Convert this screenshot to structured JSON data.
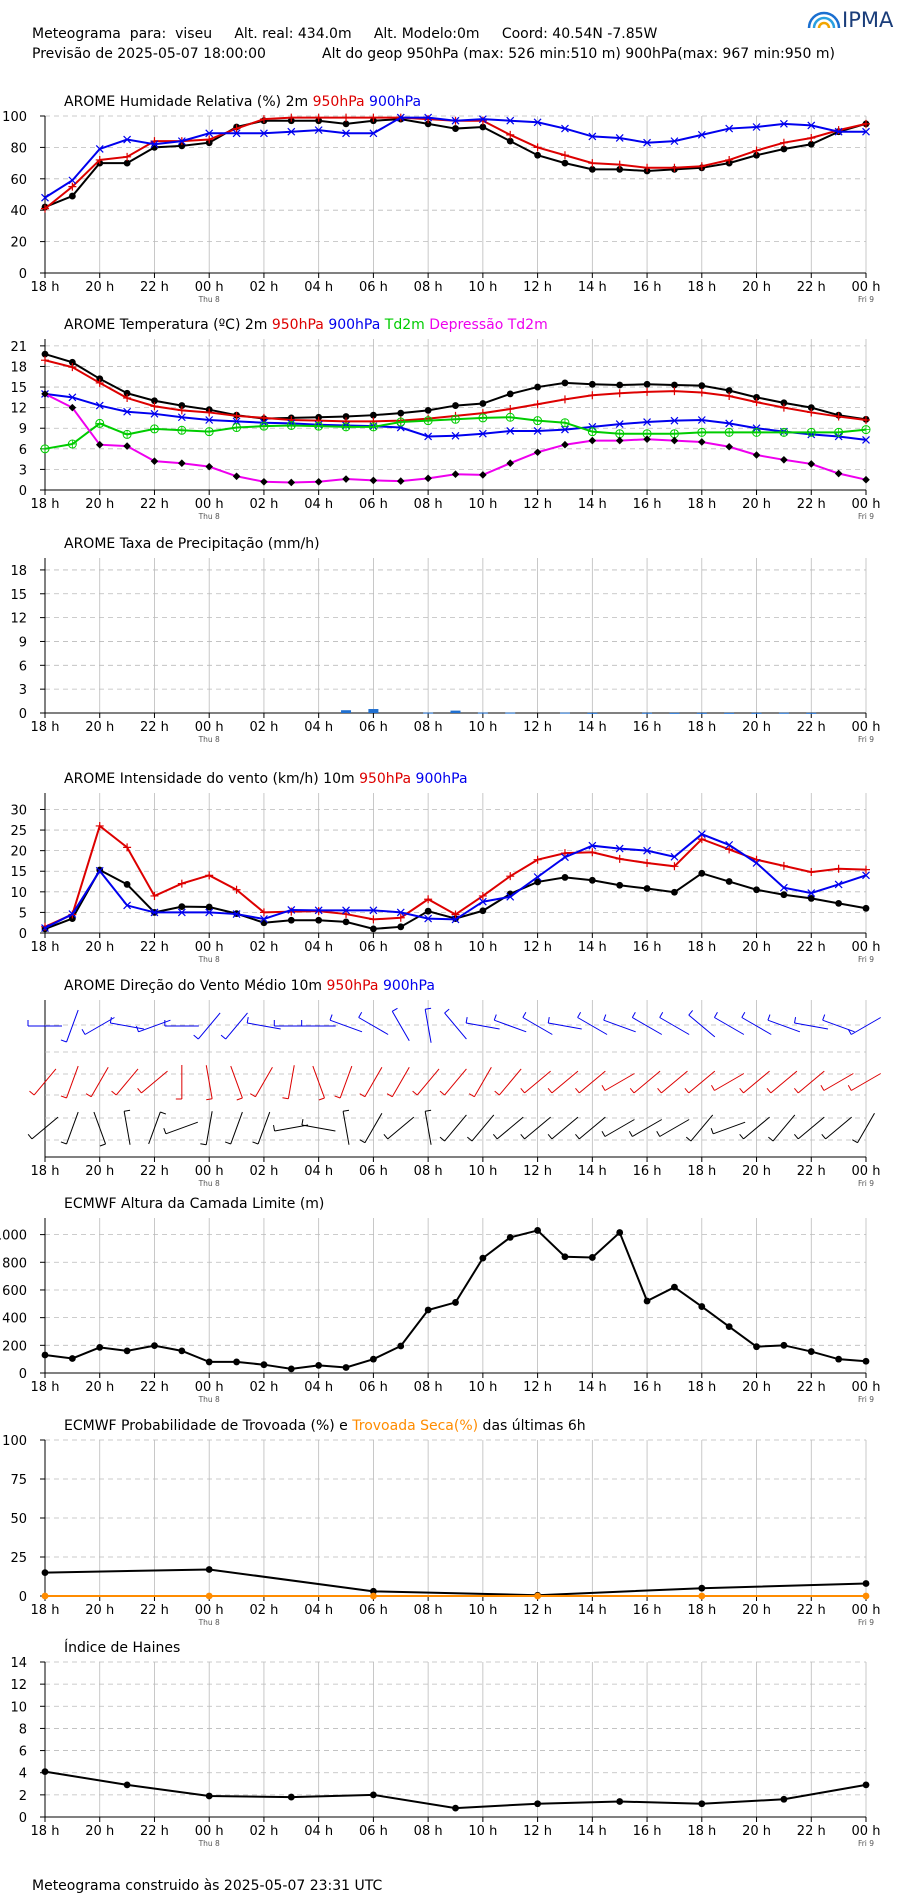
{
  "header": {
    "line1": "Meteograma  para:  viseu     Alt. real: 434.0m     Alt. Modelo:0m     Coord: 40.54N -7.85W",
    "line2_left": "Previsão de 2025-05-07 18:00:00",
    "line2_right": "Alt do geop 950hPa (max: 526 min:510 m) 900hPa(max: 967 min:950 m)",
    "logo_text": "IPMA"
  },
  "colors": {
    "black": "#000000",
    "red": "#dd0000",
    "blue": "#0000ee",
    "green": "#00cc00",
    "magenta": "#ee00ee",
    "orange": "#ff8c00",
    "precip_bar": "#1f6fd0",
    "grid": "#bbbbbb"
  },
  "time_axis": {
    "tick_labels": [
      "18 h",
      "20 h",
      "22 h",
      "00 h",
      "02 h",
      "04 h",
      "06 h",
      "08 h",
      "10 h",
      "12 h",
      "14 h",
      "16 h",
      "18 h",
      "20 h",
      "22 h",
      "00 h"
    ],
    "day_labels": [
      {
        "at_hour": 6,
        "label": "Thu 8"
      },
      {
        "at_hour": 30,
        "label": "Fri 9"
      }
    ]
  },
  "chart_data": [
    {
      "id": "humidity",
      "type": "line",
      "title_parts": [
        {
          "text": "AROME Humidade Relativa (%)  2m  ",
          "color": "#000000"
        },
        {
          "text": "950hPa",
          "color": "#dd0000"
        },
        {
          "text": "  ",
          "color": "#000000"
        },
        {
          "text": "900hPa",
          "color": "#0000ee"
        }
      ],
      "ylim": [
        0,
        100
      ],
      "yticks": [
        0,
        20,
        40,
        60,
        80,
        100
      ],
      "x": [
        0,
        1,
        2,
        3,
        4,
        5,
        6,
        7,
        8,
        9,
        10,
        11,
        12,
        13,
        14,
        15,
        16,
        17,
        18,
        19,
        20,
        21,
        22,
        23,
        24,
        25,
        26,
        27,
        28,
        29,
        30
      ],
      "series": [
        {
          "name": "2m",
          "color": "#000000",
          "marker": "dot",
          "values": [
            42,
            49,
            70,
            70,
            80,
            81,
            83,
            93,
            97,
            97,
            97,
            95,
            97,
            98,
            95,
            92,
            93,
            84,
            75,
            70,
            66,
            66,
            65,
            66,
            67,
            70,
            75,
            79,
            82,
            90,
            95
          ]
        },
        {
          "name": "950hPa",
          "color": "#dd0000",
          "marker": "plus",
          "values": [
            41,
            55,
            72,
            74,
            84,
            84,
            85,
            92,
            98,
            99,
            99,
            99,
            99,
            99,
            98,
            97,
            97,
            88,
            80,
            75,
            70,
            69,
            67,
            67,
            68,
            72,
            78,
            83,
            86,
            91,
            95
          ]
        },
        {
          "name": "900hPa",
          "color": "#0000ee",
          "marker": "x",
          "values": [
            48,
            59,
            79,
            85,
            82,
            84,
            89,
            89,
            89,
            90,
            91,
            89,
            89,
            99,
            99,
            97,
            98,
            97,
            96,
            92,
            87,
            86,
            83,
            84,
            88,
            92,
            93,
            95,
            94,
            90,
            90
          ]
        }
      ]
    },
    {
      "id": "temperature",
      "type": "line",
      "title_parts": [
        {
          "text": "AROME Temperatura (ºC)  2m  ",
          "color": "#000000"
        },
        {
          "text": "950hPa",
          "color": "#dd0000"
        },
        {
          "text": "  ",
          "color": "#000000"
        },
        {
          "text": "900hPa",
          "color": "#0000ee"
        },
        {
          "text": "  ",
          "color": "#000000"
        },
        {
          "text": "Td2m",
          "color": "#00cc00"
        },
        {
          "text": "  ",
          "color": "#000000"
        },
        {
          "text": "Depressão Td2m",
          "color": "#ee00ee"
        }
      ],
      "ylim": [
        0,
        22
      ],
      "yticks": [
        0,
        3,
        6,
        9,
        12,
        15,
        18,
        21
      ],
      "x": [
        0,
        1,
        2,
        3,
        4,
        5,
        6,
        7,
        8,
        9,
        10,
        11,
        12,
        13,
        14,
        15,
        16,
        17,
        18,
        19,
        20,
        21,
        22,
        23,
        24,
        25,
        26,
        27,
        28,
        29,
        30
      ],
      "series": [
        {
          "name": "2m",
          "color": "#000000",
          "marker": "dot",
          "values": [
            19.8,
            18.6,
            16.2,
            14.1,
            13.0,
            12.3,
            11.7,
            10.9,
            10.4,
            10.5,
            10.6,
            10.7,
            10.9,
            11.2,
            11.6,
            12.3,
            12.6,
            14.0,
            15.0,
            15.6,
            15.4,
            15.3,
            15.4,
            15.3,
            15.2,
            14.5,
            13.5,
            12.7,
            12.0,
            10.9,
            10.3
          ]
        },
        {
          "name": "950hPa",
          "color": "#dd0000",
          "marker": "plus",
          "values": [
            18.9,
            17.9,
            15.6,
            13.4,
            12.2,
            11.6,
            11.3,
            10.8,
            10.5,
            10.2,
            10.1,
            10.0,
            10.0,
            10.1,
            10.4,
            10.8,
            11.2,
            11.8,
            12.5,
            13.2,
            13.8,
            14.1,
            14.3,
            14.4,
            14.2,
            13.7,
            12.8,
            12.0,
            11.3,
            10.7,
            10.2
          ]
        },
        {
          "name": "900hPa",
          "color": "#0000ee",
          "marker": "x",
          "values": [
            14.0,
            13.5,
            12.3,
            11.4,
            11.1,
            10.6,
            10.2,
            10.0,
            9.8,
            9.7,
            9.5,
            9.4,
            9.3,
            9.1,
            7.8,
            7.9,
            8.2,
            8.6,
            8.6,
            8.8,
            9.2,
            9.6,
            9.9,
            10.1,
            10.2,
            9.7,
            9.0,
            8.5,
            8.1,
            7.8,
            7.3
          ]
        },
        {
          "name": "Td2m",
          "color": "#00cc00",
          "marker": "circle-plus",
          "values": [
            6.0,
            6.7,
            9.7,
            8.1,
            8.9,
            8.7,
            8.5,
            9.1,
            9.3,
            9.4,
            9.3,
            9.2,
            9.2,
            9.9,
            10.1,
            10.3,
            10.5,
            10.6,
            10.1,
            9.8,
            8.5,
            8.2,
            8.2,
            8.2,
            8.4,
            8.4,
            8.4,
            8.4,
            8.4,
            8.4,
            8.8
          ]
        },
        {
          "name": "Depressão Td2m",
          "color": "#ee00ee",
          "marker": "diamond",
          "values": [
            14.0,
            12.0,
            6.6,
            6.4,
            4.2,
            3.9,
            3.4,
            2.0,
            1.2,
            1.1,
            1.2,
            1.6,
            1.4,
            1.3,
            1.7,
            2.3,
            2.2,
            3.9,
            5.5,
            6.6,
            7.2,
            7.2,
            7.4,
            7.2,
            7.0,
            6.3,
            5.1,
            4.4,
            3.8,
            2.4,
            1.5
          ]
        }
      ]
    },
    {
      "id": "precip",
      "type": "bar",
      "title_parts": [
        {
          "text": "AROME Taxa de Precipitação (mm/h)",
          "color": "#000000"
        }
      ],
      "ylim": [
        0,
        19.5
      ],
      "yticks": [
        0,
        3,
        6,
        9,
        12,
        15,
        18
      ],
      "x": [
        11,
        12,
        14,
        15,
        16,
        17,
        19,
        20,
        22,
        23,
        24,
        25,
        26,
        27,
        28
      ],
      "values": [
        0.35,
        0.5,
        0.05,
        0.3,
        0.05,
        0.05,
        0.05,
        0.02,
        0.03,
        0.02,
        0.02,
        0.02,
        0.02,
        0.03,
        0.02
      ]
    },
    {
      "id": "wind",
      "type": "line",
      "title_parts": [
        {
          "text": "AROME Intensidade do vento (km/h)   10m  ",
          "color": "#000000"
        },
        {
          "text": "950hPa",
          "color": "#dd0000"
        },
        {
          "text": "  ",
          "color": "#000000"
        },
        {
          "text": "900hPa",
          "color": "#0000ee"
        }
      ],
      "ylim": [
        0,
        34
      ],
      "yticks": [
        0,
        5,
        10,
        15,
        20,
        25,
        30
      ],
      "x": [
        0,
        1,
        2,
        3,
        4,
        5,
        6,
        7,
        8,
        9,
        10,
        11,
        12,
        13,
        14,
        15,
        16,
        17,
        18,
        19,
        20,
        21,
        22,
        23,
        24,
        25,
        26,
        27,
        28,
        29,
        30
      ],
      "series": [
        {
          "name": "10m",
          "color": "#000000",
          "marker": "dot",
          "values": [
            1.0,
            3.5,
            15.3,
            11.8,
            5.0,
            6.4,
            6.3,
            4.7,
            2.5,
            3.1,
            3.1,
            2.7,
            1.0,
            1.5,
            5.3,
            3.5,
            5.4,
            9.5,
            12.4,
            13.5,
            12.8,
            11.6,
            10.8,
            9.9,
            14.5,
            12.5,
            10.5,
            9.3,
            8.4,
            7.2,
            6.0
          ]
        },
        {
          "name": "950hPa",
          "color": "#dd0000",
          "marker": "plus",
          "values": [
            1.5,
            4.5,
            26.0,
            20.8,
            9.0,
            12.0,
            14.0,
            10.5,
            5.0,
            5.2,
            5.3,
            4.6,
            3.3,
            3.7,
            8.2,
            4.5,
            9.0,
            13.8,
            17.8,
            19.4,
            19.6,
            18.0,
            17.0,
            16.2,
            22.8,
            20.3,
            17.8,
            16.3,
            14.8,
            15.6,
            15.4
          ]
        },
        {
          "name": "900hPa",
          "color": "#0000ee",
          "marker": "x",
          "values": [
            1.2,
            4.6,
            15.1,
            6.7,
            5.0,
            5.0,
            5.0,
            4.6,
            3.4,
            5.6,
            5.5,
            5.5,
            5.5,
            5.0,
            3.5,
            3.3,
            7.6,
            8.8,
            13.6,
            18.4,
            21.2,
            20.5,
            20.0,
            18.5,
            24.0,
            21.4,
            17.0,
            11.0,
            9.7,
            11.8,
            14.0
          ]
        }
      ]
    },
    {
      "id": "wind_direction",
      "type": "other",
      "title_parts": [
        {
          "text": "AROME Direção do Vento Médio   10m  ",
          "color": "#000000"
        },
        {
          "text": "950hPa",
          "color": "#dd0000"
        },
        {
          "text": "  ",
          "color": "#000000"
        },
        {
          "text": "900hPa",
          "color": "#0000ee"
        }
      ],
      "x": [
        0,
        1,
        2,
        3,
        4,
        5,
        6,
        7,
        8,
        9,
        10,
        11,
        12,
        13,
        14,
        15,
        16,
        17,
        18,
        19,
        20,
        21,
        22,
        23,
        24,
        25,
        26,
        27,
        28,
        29,
        30
      ],
      "series": [
        {
          "name": "10m",
          "color": "#000000",
          "direction_deg": [
            230,
            200,
            160,
            350,
            20,
            250,
            190,
            200,
            200,
            260,
            280,
            350,
            210,
            230,
            350,
            220,
            220,
            230,
            230,
            230,
            230,
            240,
            240,
            240,
            220,
            250,
            230,
            220,
            230,
            230,
            210
          ]
        },
        {
          "name": "950hPa",
          "color": "#dd0000",
          "direction_deg": [
            220,
            200,
            210,
            220,
            230,
            180,
            170,
            160,
            210,
            190,
            160,
            200,
            210,
            210,
            220,
            220,
            210,
            220,
            230,
            230,
            230,
            240,
            230,
            230,
            230,
            240,
            230,
            230,
            230,
            240,
            240
          ]
        },
        {
          "name": "900hPa",
          "color": "#0000ee",
          "direction_deg": [
            270,
            200,
            240,
            280,
            250,
            270,
            220,
            220,
            280,
            270,
            270,
            290,
            300,
            330,
            350,
            320,
            280,
            290,
            300,
            280,
            300,
            290,
            300,
            300,
            310,
            300,
            300,
            290,
            280,
            290,
            240
          ]
        }
      ]
    },
    {
      "id": "boundary_layer",
      "type": "line",
      "title_parts": [
        {
          "text": "ECMWF Altura da Camada Limite (m)",
          "color": "#000000"
        }
      ],
      "ylim": [
        0,
        1120
      ],
      "yticks": [
        0,
        200,
        400,
        600,
        800,
        1000
      ],
      "ytick_labels": [
        "0",
        "200",
        "400",
        "600",
        "800",
        "1000"
      ],
      "x": [
        0,
        1,
        2,
        3,
        4,
        5,
        6,
        7,
        8,
        9,
        10,
        11,
        12,
        13,
        14,
        15,
        16,
        17,
        18,
        19,
        20,
        21,
        22,
        23,
        24,
        25,
        26,
        27,
        28,
        29,
        30
      ],
      "series": [
        {
          "name": "ECMWF",
          "color": "#000000",
          "marker": "dot",
          "values": [
            130,
            105,
            185,
            160,
            198,
            160,
            80,
            80,
            60,
            30,
            55,
            40,
            100,
            195,
            455,
            510,
            830,
            980,
            1030,
            840,
            835,
            1015,
            520,
            620,
            480,
            335,
            190,
            200,
            155,
            100,
            85
          ]
        }
      ]
    },
    {
      "id": "thunder",
      "type": "line",
      "title_parts": [
        {
          "text": "ECMWF Probabilidade de Trovoada (%) e  ",
          "color": "#000000"
        },
        {
          "text": "Trovoada Seca(%)",
          "color": "#ff8c00"
        },
        {
          "text": "  das últimas 6h",
          "color": "#000000"
        }
      ],
      "ylim": [
        0,
        100
      ],
      "yticks": [
        0,
        25,
        50,
        75,
        100
      ],
      "x": [
        0,
        6,
        12,
        18,
        24,
        30
      ],
      "series": [
        {
          "name": "Trovoada",
          "color": "#000000",
          "marker": "dot",
          "values": [
            15,
            17,
            3,
            0.5,
            5,
            8
          ]
        },
        {
          "name": "Trovoada Seca",
          "color": "#ff8c00",
          "marker": "dot",
          "values": [
            0,
            0,
            0,
            0,
            0,
            0
          ]
        }
      ]
    },
    {
      "id": "haines",
      "type": "line",
      "title_parts": [
        {
          "text": "Índice de Haines",
          "color": "#000000"
        }
      ],
      "ylim": [
        0,
        14
      ],
      "yticks": [
        0,
        2,
        4,
        6,
        8,
        10,
        12,
        14
      ],
      "x": [
        0,
        3,
        6,
        9,
        12,
        15,
        18,
        21,
        24,
        27,
        30
      ],
      "series": [
        {
          "name": "Haines",
          "color": "#000000",
          "marker": "dot",
          "values": [
            4.1,
            2.9,
            1.9,
            1.8,
            2.0,
            0.8,
            1.2,
            1.4,
            1.2,
            1.6,
            2.9
          ]
        }
      ]
    }
  ],
  "footer": {
    "text": "Meteograma construido às 2025-05-07 23:31 UTC"
  }
}
